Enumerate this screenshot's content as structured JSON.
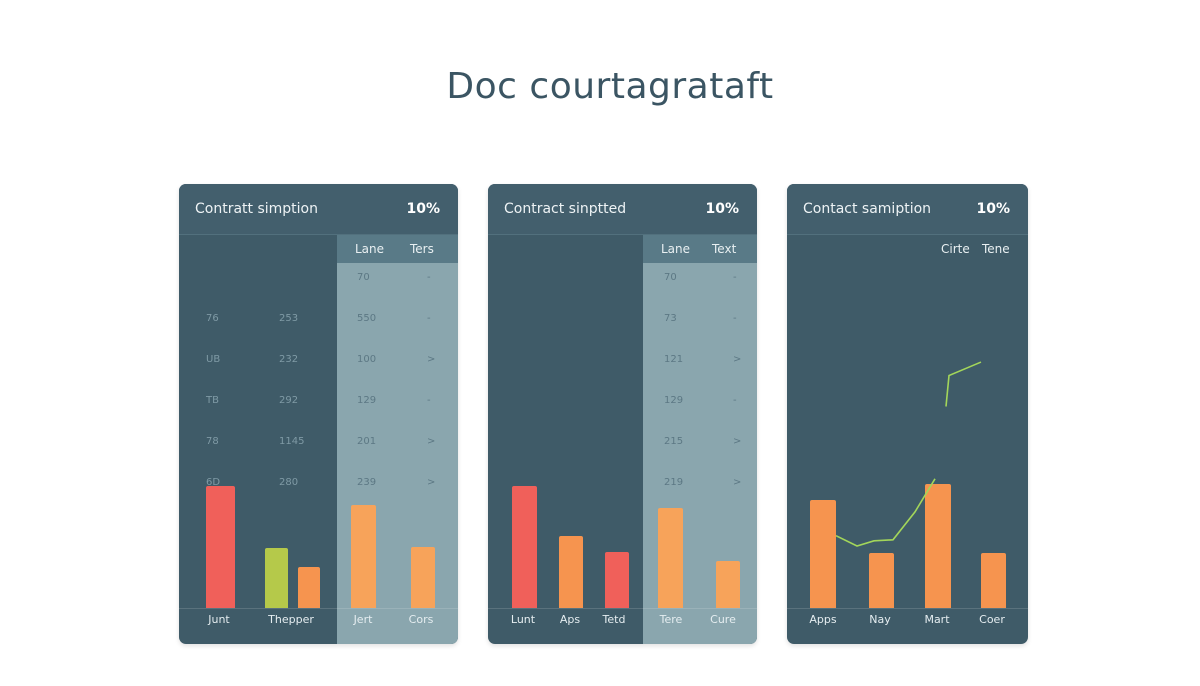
{
  "page": {
    "title": "Doc courtagrataft"
  },
  "colors": {
    "card_bg": "#3f5b68",
    "light_panel": "#8aa6ae",
    "red": "#f0605a",
    "orange": "#f6944f",
    "light_orange": "#f7a35a",
    "lime": "#b5c94a",
    "line": "#a3d65a"
  },
  "cards": [
    {
      "title": "Contratt simption",
      "percent": "10%",
      "columns": [
        "Lane",
        "Ters"
      ],
      "rows": [
        {
          "a": "",
          "b": "",
          "c": "70",
          "d": "-"
        },
        {
          "a": "76",
          "b": "253",
          "c": "550",
          "d": "-"
        },
        {
          "a": "UB",
          "b": "232",
          "c": "100",
          "d": ">"
        },
        {
          "a": "TB",
          "b": "292",
          "c": "129",
          "d": "-"
        },
        {
          "a": "78",
          "b": "1145",
          "c": "201",
          "d": ">"
        },
        {
          "a": "6D",
          "b": "280",
          "c": "239",
          "d": ">"
        }
      ]
    },
    {
      "title": "Contract sinptted",
      "percent": "10%",
      "columns": [
        "Lane",
        "Text"
      ],
      "rows": [
        {
          "a": "",
          "b": "",
          "c": "70",
          "d": "-"
        },
        {
          "a": "",
          "b": "",
          "c": "73",
          "d": "-"
        },
        {
          "a": "",
          "b": "",
          "c": "121",
          "d": ">"
        },
        {
          "a": "",
          "b": "",
          "c": "129",
          "d": "-"
        },
        {
          "a": "",
          "b": "",
          "c": "215",
          "d": ">"
        },
        {
          "a": "",
          "b": "",
          "c": "219",
          "d": ">"
        }
      ]
    },
    {
      "title": "Contact samiption",
      "percent": "10%",
      "columns": [
        "Cirte",
        "Tene"
      ],
      "rows": []
    }
  ],
  "chart_data": [
    {
      "type": "bar",
      "categories": [
        "Junt",
        "Thepper",
        "",
        "Jert",
        "Cors"
      ],
      "values": [
        98,
        48,
        33,
        83,
        49
      ],
      "colors": [
        "#f0605a",
        "#b5c94a",
        "#f6944f",
        "#f7a35a",
        "#f7a35a"
      ],
      "ylim": [
        0,
        100
      ]
    },
    {
      "type": "bar",
      "categories": [
        "Lunt",
        "Aps",
        "Tetd",
        "Tere",
        "Cure"
      ],
      "values": [
        98,
        58,
        45,
        81,
        38
      ],
      "colors": [
        "#f0605a",
        "#f6944f",
        "#f0605a",
        "#f7a35a",
        "#f7a35a"
      ],
      "ylim": [
        0,
        100
      ]
    },
    {
      "type": "bar",
      "categories": [
        "Apps",
        "Nay",
        "Mart",
        "Coer"
      ],
      "values": [
        105,
        53,
        120,
        53
      ],
      "colors": [
        "#f6944f",
        "#f6944f",
        "#f6944f",
        "#f6944f"
      ],
      "ylim": [
        0,
        120
      ],
      "line_series": [
        {
          "values": [
            70,
            60,
            65,
            66,
            93,
            125
          ]
        },
        {
          "values": [
            195,
            225,
            238
          ]
        }
      ]
    }
  ]
}
